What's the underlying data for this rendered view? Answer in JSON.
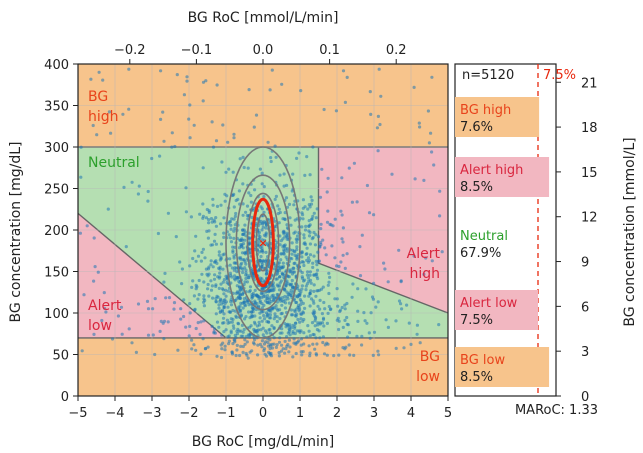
{
  "chart_data": {
    "type": "scatter",
    "title": "",
    "xlabel": "BG RoC [mg/dL/min]",
    "ylabel": "BG concentration [mg/dL]",
    "x2label": "BG RoC [mmol/L/min]",
    "y2label": "BG concentration [mmol/L]",
    "xlim": [
      -5,
      5
    ],
    "ylim": [
      0,
      400
    ],
    "xticks": [
      "−5",
      "−4",
      "−3",
      "−2",
      "−1",
      "0",
      "1",
      "2",
      "3",
      "4",
      "5"
    ],
    "yticks": [
      "0",
      "50",
      "100",
      "150",
      "200",
      "250",
      "300",
      "350",
      "400"
    ],
    "x2ticks": [
      "−0.2",
      "−0.1",
      "0.0",
      "0.1",
      "0.2"
    ],
    "x2tick_values": [
      -0.2,
      -0.1,
      0.0,
      0.1,
      0.2
    ],
    "y2ticks": [
      "0",
      "3",
      "6",
      "9",
      "12",
      "15",
      "18",
      "21"
    ],
    "y2tick_values": [
      0,
      3,
      6,
      9,
      12,
      15,
      18,
      21
    ],
    "grid": true,
    "series_name": "",
    "n_points": 5120,
    "center": {
      "x": 0.0,
      "y": 185
    },
    "regions": [
      {
        "name": "BG high",
        "label": "BG\nhigh",
        "color": "#f7c48c"
      },
      {
        "name": "Alert high",
        "label": "Alert\nhigh",
        "color": "#f2b7c1"
      },
      {
        "name": "Neutral",
        "label": "Neutral",
        "color": "#b5dfb2"
      },
      {
        "name": "Alert low",
        "label": "Alert\nlow",
        "color": "#f2b7c1"
      },
      {
        "name": "BG low",
        "label": "BG\nlow",
        "color": "#f7c48c"
      }
    ],
    "side_panel": {
      "n_label": "n=5120",
      "threshold_label": "7.5%",
      "threshold_value": 7.5,
      "entries": [
        {
          "label": "BG high",
          "value": "7.6%",
          "color": "#f7c48c",
          "text_color": "#e8431b"
        },
        {
          "label": "Alert high",
          "value": "8.5%",
          "color": "#f2b7c1",
          "text_color": "#d9263f"
        },
        {
          "label": "Neutral",
          "value": "67.9%",
          "color": "#ffffff",
          "text_color": "#2ca02c"
        },
        {
          "label": "Alert low",
          "value": "7.5%",
          "color": "#f2b7c1",
          "text_color": "#d9263f"
        },
        {
          "label": "BG low",
          "value": "8.5%",
          "color": "#f7c48c",
          "text_color": "#e8431b"
        }
      ],
      "maroc_label": "MARoC: 1.33"
    },
    "colors": {
      "points": "#1f77b4",
      "ellipse": "#777777",
      "highlight": "#e8280e",
      "orange_text": "#e8431b",
      "red_text": "#d9263f",
      "green_text": "#2ca02c"
    }
  }
}
